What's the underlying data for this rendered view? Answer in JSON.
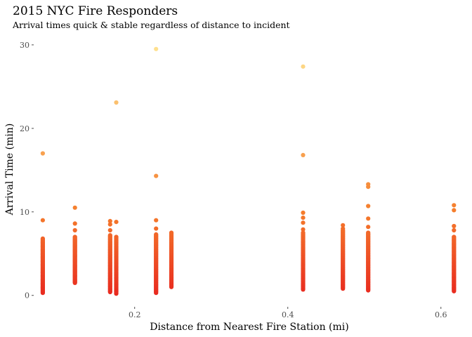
{
  "chart_data": {
    "type": "scatter",
    "title": "2015 NYC Fire Responders",
    "subtitle": "Arrival times quick & stable regardless of distance to incident",
    "xlabel": "Distance from Nearest Fire Station (mi)",
    "ylabel": "Arrival Time (min)",
    "xlim": [
      0.07,
      0.625
    ],
    "ylim": [
      -1.2,
      31
    ],
    "x_ticks": [
      0.2,
      0.4,
      0.6
    ],
    "x_tick_labels": [
      "0.2",
      "0.4",
      "0.6"
    ],
    "y_ticks": [
      0,
      10,
      20,
      30
    ],
    "y_tick_labels": [
      "0",
      "10",
      "20",
      "30"
    ],
    "grid": false,
    "legend": "none",
    "color_scale": {
      "low": "#e8281f",
      "mid": "#f57d2c",
      "high": "#fee391"
    },
    "columns": [
      {
        "x": 0.08,
        "min": 0.3,
        "max": 6.8
      },
      {
        "x": 0.122,
        "min": 1.5,
        "max": 7.0
      },
      {
        "x": 0.168,
        "min": 0.4,
        "max": 7.2
      },
      {
        "x": 0.176,
        "min": 0.2,
        "max": 7.0
      },
      {
        "x": 0.228,
        "min": 0.3,
        "max": 7.3
      },
      {
        "x": 0.248,
        "min": 1.0,
        "max": 7.5
      },
      {
        "x": 0.42,
        "min": 0.7,
        "max": 7.5
      },
      {
        "x": 0.472,
        "min": 0.8,
        "max": 7.8
      },
      {
        "x": 0.505,
        "min": 0.6,
        "max": 7.5
      },
      {
        "x": 0.617,
        "min": 0.5,
        "max": 7.0
      }
    ],
    "outliers": [
      {
        "x": 0.08,
        "y": 17.0
      },
      {
        "x": 0.08,
        "y": 9.0
      },
      {
        "x": 0.122,
        "y": 10.5
      },
      {
        "x": 0.122,
        "y": 8.6
      },
      {
        "x": 0.122,
        "y": 7.8
      },
      {
        "x": 0.168,
        "y": 8.9
      },
      {
        "x": 0.168,
        "y": 8.5
      },
      {
        "x": 0.168,
        "y": 7.8
      },
      {
        "x": 0.176,
        "y": 23.1
      },
      {
        "x": 0.176,
        "y": 8.8
      },
      {
        "x": 0.176,
        "y": 0.5
      },
      {
        "x": 0.228,
        "y": 29.5
      },
      {
        "x": 0.228,
        "y": 14.3
      },
      {
        "x": 0.228,
        "y": 9.0
      },
      {
        "x": 0.228,
        "y": 8.0
      },
      {
        "x": 0.42,
        "y": 27.4
      },
      {
        "x": 0.42,
        "y": 16.8
      },
      {
        "x": 0.42,
        "y": 9.9
      },
      {
        "x": 0.42,
        "y": 9.3
      },
      {
        "x": 0.42,
        "y": 8.7
      },
      {
        "x": 0.42,
        "y": 7.9
      },
      {
        "x": 0.472,
        "y": 8.4
      },
      {
        "x": 0.472,
        "y": 8.0
      },
      {
        "x": 0.505,
        "y": 13.3
      },
      {
        "x": 0.505,
        "y": 13.0
      },
      {
        "x": 0.505,
        "y": 10.7
      },
      {
        "x": 0.505,
        "y": 9.2
      },
      {
        "x": 0.505,
        "y": 8.2
      },
      {
        "x": 0.617,
        "y": 10.8
      },
      {
        "x": 0.617,
        "y": 10.2
      },
      {
        "x": 0.617,
        "y": 8.3
      },
      {
        "x": 0.617,
        "y": 7.8
      }
    ]
  }
}
